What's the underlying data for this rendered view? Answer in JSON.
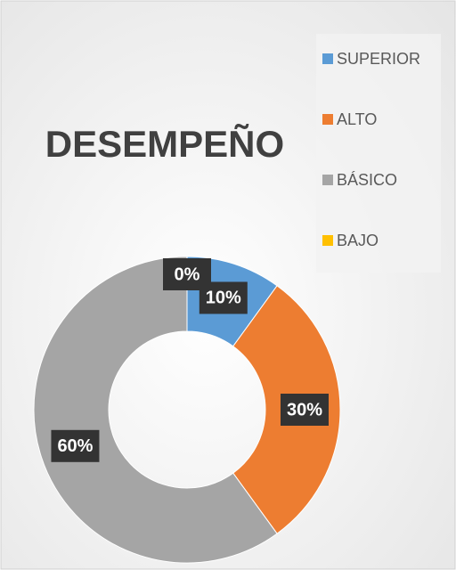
{
  "chart_data": {
    "type": "donut",
    "title": "DESEMPEÑO",
    "categories": [
      "SUPERIOR",
      "ALTO",
      "BÁSICO",
      "BAJO"
    ],
    "values": [
      10,
      30,
      60,
      0
    ],
    "value_labels": [
      "10%",
      "30%",
      "60%",
      "0%"
    ],
    "colors": [
      "#5b9bd5",
      "#ed7d31",
      "#a5a5a5",
      "#ffc000"
    ],
    "legend": "right"
  }
}
